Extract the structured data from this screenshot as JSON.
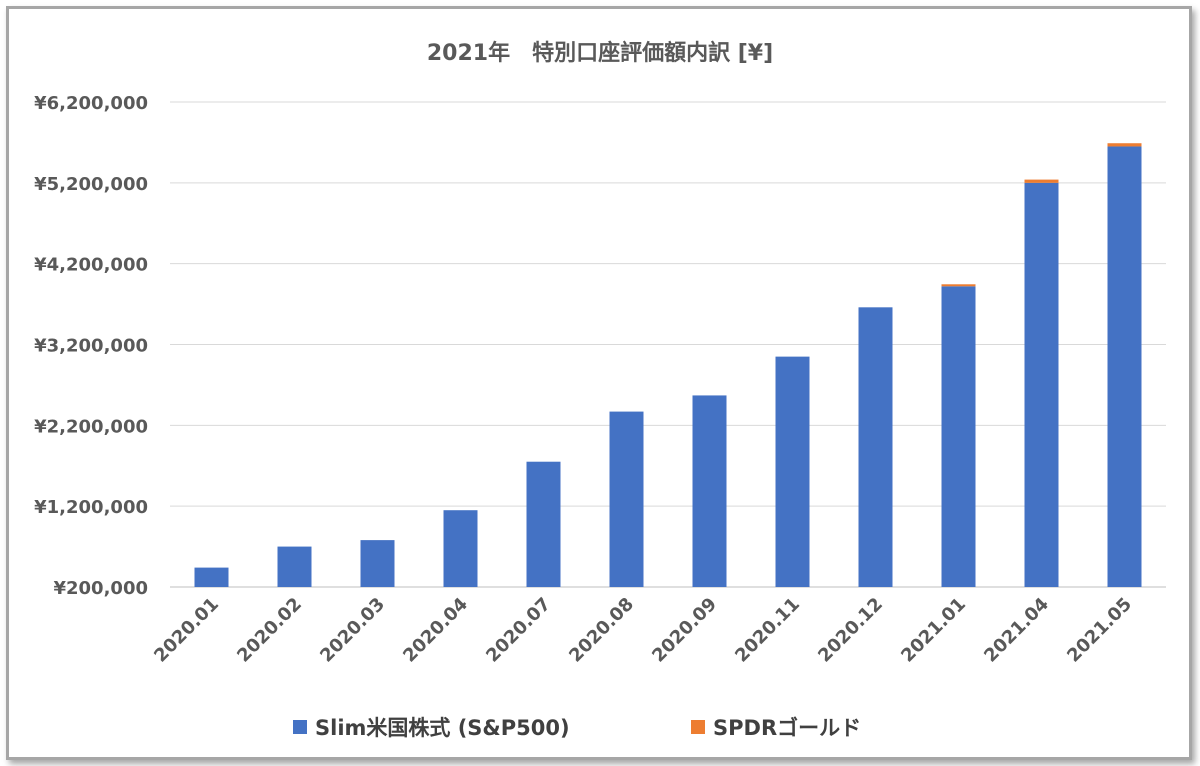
{
  "chart_data": {
    "type": "bar",
    "stacked": true,
    "title": "2021年　特別口座評価額内訳 [¥]",
    "categories": [
      "2020.01",
      "2020.02",
      "2020.03",
      "2020.04",
      "2020.07",
      "2020.08",
      "2020.09",
      "2020.11",
      "2020.12",
      "2021.01",
      "2021.04",
      "2021.05"
    ],
    "series": [
      {
        "name": "Slim米国株式 (S&P500)",
        "color": "#4472C4",
        "values": [
          240000,
          500000,
          580000,
          950000,
          1550000,
          2170000,
          2370000,
          2850000,
          3460000,
          3720000,
          5000000,
          5450000
        ]
      },
      {
        "name": "SPDRゴールド",
        "color": "#ED7D31",
        "values": [
          0,
          0,
          0,
          0,
          0,
          0,
          0,
          0,
          0,
          25000,
          40000,
          40000
        ]
      }
    ],
    "ylim": [
      200000,
      6200000
    ],
    "yticks": [
      200000,
      1200000,
      2200000,
      3200000,
      4200000,
      5200000,
      6200000
    ],
    "ytick_labels": [
      "¥200,000",
      "¥1,200,000",
      "¥2,200,000",
      "¥3,200,000",
      "¥4,200,000",
      "¥5,200,000",
      "¥6,200,000"
    ],
    "xlabel": "",
    "ylabel": "",
    "grid": true,
    "legend": "bottom"
  }
}
